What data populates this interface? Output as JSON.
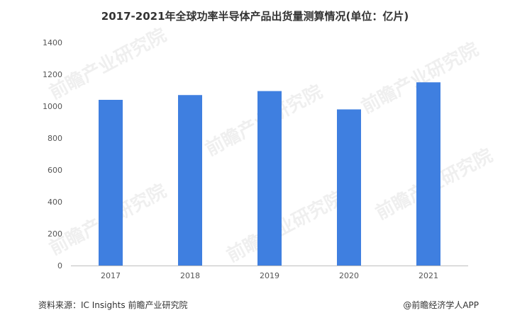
{
  "chart_data": {
    "type": "bar",
    "title": "2017-2021年全球功率半导体产品出货量测算情况(单位：亿片)",
    "categories": [
      "2017",
      "2018",
      "2019",
      "2020",
      "2021"
    ],
    "values": [
      1040,
      1070,
      1095,
      980,
      1150
    ],
    "ylim": [
      0,
      1400
    ],
    "yticks": [
      0,
      200,
      400,
      600,
      800,
      1000,
      1200,
      1400
    ],
    "xlabel": "",
    "ylabel": "",
    "bar_color": "#3f7fe0",
    "grid": false,
    "legend": "none"
  },
  "footer": {
    "source": "资料来源：IC Insights 前瞻产业研究院",
    "credit": "@前瞻经济学人APP"
  },
  "watermark": {
    "text": "前瞻产业研究院"
  }
}
